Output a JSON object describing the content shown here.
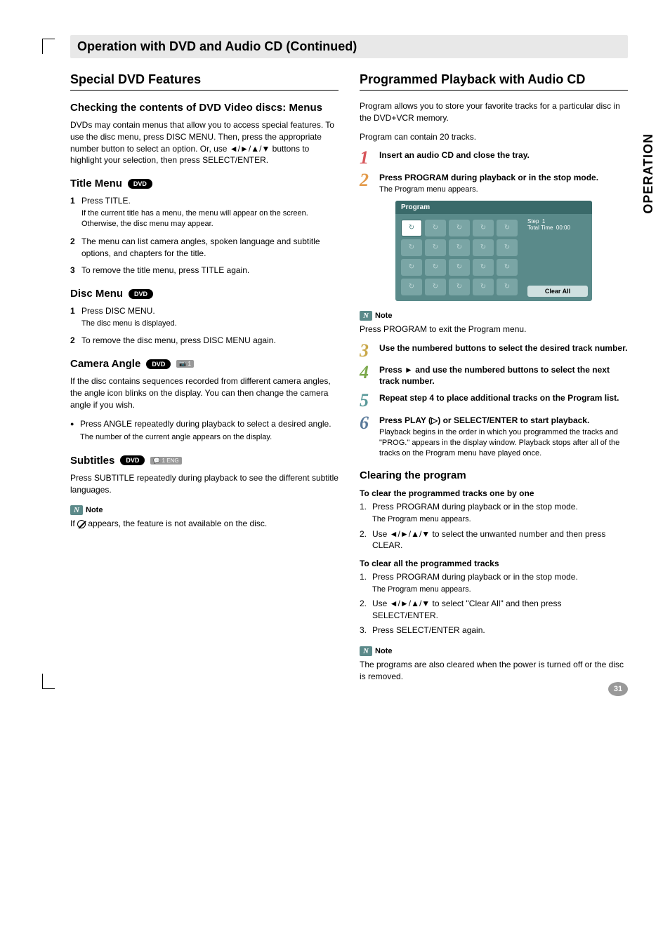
{
  "pageHeader": "Operation with DVD and Audio CD (Continued)",
  "sideTab": "OPERATION",
  "pageNumber": "31",
  "left": {
    "title": "Special DVD Features",
    "menus": {
      "heading": "Checking the contents of DVD Video discs: Menus",
      "body": "DVDs may contain menus that allow you to access special features. To use the disc menu, press DISC MENU. Then, press the appropriate number button to select an option. Or, use ◄/►/▲/▼ buttons to highlight your selection, then press SELECT/ENTER."
    },
    "titleMenu": {
      "heading": "Title Menu",
      "badge": "DVD",
      "items": [
        {
          "n": "1",
          "t": "Press TITLE.",
          "sub": "If the current title has a menu, the menu will appear on the screen. Otherwise, the disc menu may appear."
        },
        {
          "n": "2",
          "t": "The menu can list camera angles, spoken language and subtitle options, and chapters for the title."
        },
        {
          "n": "3",
          "t": "To remove the title menu, press TITLE again."
        }
      ]
    },
    "discMenu": {
      "heading": "Disc Menu",
      "badge": "DVD",
      "items": [
        {
          "n": "1",
          "t": "Press DISC MENU.",
          "sub": "The disc menu is displayed."
        },
        {
          "n": "2",
          "t": "To remove the disc menu, press DISC MENU again."
        }
      ]
    },
    "camera": {
      "heading": "Camera Angle",
      "badge": "DVD",
      "badge2": "📷 1",
      "body": "If the disc contains sequences recorded from different camera angles, the angle icon blinks on the display. You can then change the camera angle if you wish.",
      "bullet": "Press ANGLE repeatedly during playback to select a desired angle.",
      "bulletSub": "The number of the current angle appears on the display."
    },
    "subtitles": {
      "heading": "Subtitles",
      "badge": "DVD",
      "badge2": "💬 1 ENG",
      "body": "Press SUBTITLE repeatedly during playback to see the different subtitle languages."
    },
    "note": {
      "label": "Note",
      "body1": "If ",
      "body2": " appears, the feature is not available on the disc."
    }
  },
  "right": {
    "title": "Programmed Playback with Audio CD",
    "intro1": "Program allows you to store your favorite tracks for a particular disc in the DVD+VCR memory.",
    "intro2": "Program can contain 20 tracks.",
    "steps": [
      {
        "n": "1",
        "cls": "sn1",
        "bold": "Insert an audio CD and close the tray."
      },
      {
        "n": "2",
        "cls": "sn2",
        "bold": "Press PROGRAM during playback or in the stop mode.",
        "plain": "The Program menu appears."
      }
    ],
    "programMenu": {
      "title": "Program",
      "stepLabel": "Step",
      "stepVal": "1",
      "timeLabel": "Total Time",
      "timeVal": "00:00",
      "clear": "Clear All",
      "glyph": "↻"
    },
    "note1": {
      "label": "Note",
      "body": "Press PROGRAM to exit the Program menu."
    },
    "steps2": [
      {
        "n": "3",
        "cls": "sn3",
        "bold": "Use the numbered buttons to select the desired track number."
      },
      {
        "n": "4",
        "cls": "sn4",
        "bold": "Press ► and use the numbered buttons to select the next track number."
      },
      {
        "n": "5",
        "cls": "sn5",
        "bold": "Repeat step 4 to place additional tracks on the Program list."
      },
      {
        "n": "6",
        "cls": "sn6",
        "bold": "Press PLAY (▷) or SELECT/ENTER to start playback.",
        "plain": "Playback begins in the order in which you programmed the tracks and \"PROG.\" appears in the display window. Playback stops after all of the tracks on the Program menu have played once."
      }
    ],
    "clearing": {
      "heading": "Clearing the program",
      "sub1": "To clear the programmed tracks one by one",
      "list1": [
        {
          "n": "1.",
          "t": "Press PROGRAM during playback or in the stop mode.",
          "sub": "The Program menu appears."
        },
        {
          "n": "2.",
          "t": "Use ◄/►/▲/▼ to select the unwanted number and then press CLEAR."
        }
      ],
      "sub2": "To clear all the programmed tracks",
      "list2": [
        {
          "n": "1.",
          "t": "Press PROGRAM during playback or in the stop mode.",
          "sub": "The Program menu appears."
        },
        {
          "n": "2.",
          "t": "Use ◄/►/▲/▼ to select \"Clear All\" and then press SELECT/ENTER."
        },
        {
          "n": "3.",
          "t": "Press SELECT/ENTER again."
        }
      ]
    },
    "note2": {
      "label": "Note",
      "body": "The programs are also cleared when the power is turned off or the disc is removed."
    }
  }
}
